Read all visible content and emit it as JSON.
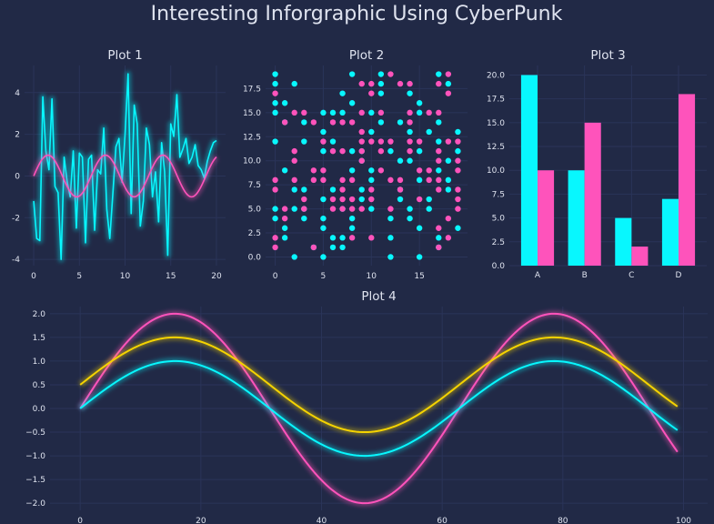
{
  "title": "Interesting Inforgraphic Using CyberPunk",
  "colors": {
    "background": "#212946",
    "grid": "#2A3459",
    "text": "#dfe3ef",
    "cyan": "#08F7FE",
    "pink": "#FE53BB",
    "yellow": "#F5D300"
  },
  "chart_data": [
    {
      "type": "line",
      "title": "Plot 1",
      "xlim": [
        -1,
        21
      ],
      "ylim": [
        -4.3,
        5.3
      ],
      "xticks": [
        0,
        5,
        10,
        15,
        20
      ],
      "yticks": [
        -4,
        -2,
        0,
        2,
        4
      ],
      "grid": true,
      "series": [
        {
          "color": "#08F7FE",
          "x": [
            0,
            0.33,
            0.67,
            1,
            1.33,
            1.67,
            2,
            2.33,
            2.67,
            3,
            3.33,
            3.67,
            4,
            4.33,
            4.67,
            5,
            5.33,
            5.67,
            6,
            6.33,
            6.67,
            7,
            7.33,
            7.67,
            8,
            8.33,
            8.67,
            9,
            9.33,
            9.67,
            10,
            10.33,
            10.67,
            11,
            11.33,
            11.67,
            12,
            12.33,
            12.67,
            13,
            13.33,
            13.67,
            14,
            14.33,
            14.67,
            15,
            15.33,
            15.67,
            16,
            16.33,
            16.67,
            17,
            17.33,
            17.67,
            18,
            18.33,
            18.67,
            19,
            19.33,
            19.67,
            20
          ],
          "y": [
            -1.2,
            -3.0,
            -3.1,
            3.8,
            1.2,
            0.3,
            3.7,
            -0.5,
            -0.8,
            -4.0,
            0.9,
            -0.3,
            -1.0,
            1.2,
            -2.5,
            1.1,
            0.9,
            -3.2,
            0.8,
            1.0,
            -2.6,
            0.3,
            0.1,
            2.3,
            -1.6,
            -3.0,
            -0.8,
            1.4,
            1.8,
            -0.3,
            2.0,
            4.9,
            -1.8,
            3.4,
            2.5,
            -2.4,
            -1.2,
            2.3,
            1.5,
            -1.0,
            0.2,
            -2.2,
            1.6,
            0.2,
            -3.8,
            2.5,
            1.9,
            3.9,
            0.9,
            1.3,
            1.8,
            0.6,
            0.9,
            1.5,
            0.5,
            0.3,
            -0.1,
            0.7,
            1.2,
            1.6,
            1.7
          ]
        },
        {
          "color": "#FE53BB",
          "function": "sin",
          "x_range": [
            0,
            20
          ],
          "points": 200
        }
      ]
    },
    {
      "type": "scatter",
      "title": "Plot 2",
      "xlim": [
        -1,
        20
      ],
      "ylim": [
        -0.9,
        19.9
      ],
      "xticks": [
        0,
        5,
        10,
        15
      ],
      "yticks": [
        0.0,
        2.5,
        5.0,
        7.5,
        10.0,
        12.5,
        15.0,
        17.5
      ],
      "ytick_labels": [
        "0.0",
        "2.5",
        "5.0",
        "7.5",
        "10.0",
        "12.5",
        "15.0",
        "17.5"
      ],
      "grid": true,
      "series": [
        {
          "color": "#08F7FE",
          "points": [
            [
              0,
              19
            ],
            [
              0,
              18
            ],
            [
              0,
              16
            ],
            [
              0,
              15
            ],
            [
              0,
              12
            ],
            [
              0,
              5
            ],
            [
              0,
              4
            ],
            [
              1,
              16
            ],
            [
              1,
              14
            ],
            [
              1,
              9
            ],
            [
              1,
              3
            ],
            [
              1,
              2
            ],
            [
              2,
              18
            ],
            [
              2,
              7
            ],
            [
              2,
              5
            ],
            [
              2,
              0
            ],
            [
              3,
              14
            ],
            [
              3,
              12
            ],
            [
              3,
              7
            ],
            [
              3,
              5
            ],
            [
              3,
              4
            ],
            [
              4,
              1
            ],
            [
              5,
              15
            ],
            [
              5,
              13
            ],
            [
              5,
              11
            ],
            [
              5,
              6
            ],
            [
              5,
              4
            ],
            [
              5,
              3
            ],
            [
              5,
              0
            ],
            [
              6,
              15
            ],
            [
              6,
              12
            ],
            [
              6,
              7
            ],
            [
              6,
              2
            ],
            [
              6,
              1
            ],
            [
              7,
              17
            ],
            [
              7,
              15
            ],
            [
              7,
              5
            ],
            [
              7,
              2
            ],
            [
              7,
              1
            ],
            [
              8,
              19
            ],
            [
              8,
              16
            ],
            [
              8,
              11
            ],
            [
              8,
              9
            ],
            [
              8,
              4
            ],
            [
              8,
              3
            ],
            [
              9,
              11
            ],
            [
              9,
              10
            ],
            [
              9,
              7
            ],
            [
              9,
              6
            ],
            [
              10,
              15
            ],
            [
              10,
              13
            ],
            [
              10,
              9
            ],
            [
              10,
              8
            ],
            [
              10,
              5
            ],
            [
              11,
              19
            ],
            [
              11,
              18
            ],
            [
              11,
              17
            ],
            [
              11,
              14
            ],
            [
              12,
              11
            ],
            [
              12,
              4
            ],
            [
              12,
              2
            ],
            [
              12,
              0
            ],
            [
              13,
              14
            ],
            [
              13,
              10
            ],
            [
              13,
              7
            ],
            [
              13,
              6
            ],
            [
              14,
              17
            ],
            [
              14,
              13
            ],
            [
              14,
              10
            ],
            [
              14,
              5
            ],
            [
              14,
              4
            ],
            [
              15,
              16
            ],
            [
              15,
              15
            ],
            [
              15,
              11
            ],
            [
              15,
              8
            ],
            [
              15,
              3
            ],
            [
              15,
              0
            ],
            [
              16,
              13
            ],
            [
              16,
              6
            ],
            [
              16,
              5
            ],
            [
              17,
              19
            ],
            [
              17,
              14
            ],
            [
              17,
              12
            ],
            [
              17,
              9
            ],
            [
              17,
              2
            ],
            [
              17,
              1
            ],
            [
              18,
              18
            ],
            [
              18,
              10
            ],
            [
              18,
              8
            ],
            [
              18,
              7
            ],
            [
              19,
              13
            ],
            [
              19,
              11
            ],
            [
              19,
              3
            ]
          ]
        },
        {
          "color": "#FE53BB",
          "points": [
            [
              0,
              17
            ],
            [
              0,
              8
            ],
            [
              0,
              7
            ],
            [
              0,
              2
            ],
            [
              0,
              1
            ],
            [
              1,
              14
            ],
            [
              1,
              5
            ],
            [
              1,
              4
            ],
            [
              2,
              15
            ],
            [
              2,
              11
            ],
            [
              2,
              10
            ],
            [
              2,
              8
            ],
            [
              3,
              15
            ],
            [
              3,
              6
            ],
            [
              3,
              5
            ],
            [
              4,
              14
            ],
            [
              4,
              9
            ],
            [
              4,
              8
            ],
            [
              4,
              1
            ],
            [
              5,
              12
            ],
            [
              5,
              9
            ],
            [
              5,
              8
            ],
            [
              6,
              14
            ],
            [
              6,
              11
            ],
            [
              6,
              6
            ],
            [
              6,
              5
            ],
            [
              7,
              14
            ],
            [
              7,
              11
            ],
            [
              7,
              8
            ],
            [
              7,
              7
            ],
            [
              7,
              6
            ],
            [
              7,
              5
            ],
            [
              8,
              14
            ],
            [
              8,
              8
            ],
            [
              8,
              6
            ],
            [
              8,
              5
            ],
            [
              8,
              2
            ],
            [
              9,
              18
            ],
            [
              9,
              15
            ],
            [
              9,
              13
            ],
            [
              9,
              12
            ],
            [
              9,
              11
            ],
            [
              9,
              10
            ],
            [
              9,
              5
            ],
            [
              10,
              18
            ],
            [
              10,
              17
            ],
            [
              10,
              12
            ],
            [
              10,
              7
            ],
            [
              10,
              6
            ],
            [
              10,
              2
            ],
            [
              11,
              15
            ],
            [
              11,
              12
            ],
            [
              11,
              11
            ],
            [
              11,
              9
            ],
            [
              12,
              19
            ],
            [
              12,
              12
            ],
            [
              12,
              8
            ],
            [
              12,
              5
            ],
            [
              13,
              18
            ],
            [
              13,
              8
            ],
            [
              13,
              7
            ],
            [
              14,
              18
            ],
            [
              14,
              15
            ],
            [
              14,
              14
            ],
            [
              14,
              12
            ],
            [
              14,
              11
            ],
            [
              15,
              12
            ],
            [
              15,
              9
            ],
            [
              15,
              6
            ],
            [
              16,
              15
            ],
            [
              16,
              9
            ],
            [
              16,
              8
            ],
            [
              17,
              18
            ],
            [
              17,
              15
            ],
            [
              17,
              11
            ],
            [
              17,
              10
            ],
            [
              17,
              8
            ],
            [
              17,
              7
            ],
            [
              17,
              3
            ],
            [
              17,
              1
            ],
            [
              18,
              19
            ],
            [
              18,
              17
            ],
            [
              18,
              12
            ],
            [
              18,
              4
            ],
            [
              18,
              2
            ],
            [
              19,
              12
            ],
            [
              19,
              10
            ],
            [
              19,
              9
            ],
            [
              19,
              7
            ],
            [
              19,
              6
            ],
            [
              19,
              5
            ]
          ]
        }
      ]
    },
    {
      "type": "bar",
      "title": "Plot 3",
      "categories": [
        "A",
        "B",
        "C",
        "D"
      ],
      "ylim": [
        0,
        21
      ],
      "yticks": [
        0.0,
        2.5,
        5.0,
        7.5,
        10.0,
        12.5,
        15.0,
        17.5,
        20.0
      ],
      "ytick_labels": [
        "0.0",
        "2.5",
        "5.0",
        "7.5",
        "10.0",
        "12.5",
        "15.0",
        "17.5",
        "20.0"
      ],
      "grid": true,
      "series": [
        {
          "color": "#08F7FE",
          "values": [
            20,
            10,
            5,
            7
          ]
        },
        {
          "color": "#FE53BB",
          "values": [
            10,
            15,
            2,
            18
          ]
        }
      ]
    },
    {
      "type": "line",
      "title": "Plot 4",
      "xlim": [
        -5,
        104
      ],
      "ylim": [
        -2.15,
        2.15
      ],
      "xticks": [
        0,
        20,
        40,
        60,
        80,
        100
      ],
      "yticks": [
        -2.0,
        -1.5,
        -1.0,
        -0.5,
        0.0,
        0.5,
        1.0,
        1.5,
        2.0
      ],
      "ytick_labels": [
        "−2.0",
        "−1.5",
        "−1.0",
        "−0.5",
        "0.0",
        "0.5",
        "1.0",
        "1.5",
        "2.0"
      ],
      "grid": true,
      "series": [
        {
          "color": "#FE53BB",
          "function": "2*sin(x/10)",
          "x_range": [
            0,
            99
          ],
          "points": 200
        },
        {
          "color": "#F5D300",
          "function": "sin(x/10)+0.5",
          "x_range": [
            0,
            99
          ],
          "points": 200
        },
        {
          "color": "#08F7FE",
          "function": "sin(x/10)",
          "x_range": [
            0,
            99
          ],
          "points": 200
        }
      ]
    }
  ]
}
